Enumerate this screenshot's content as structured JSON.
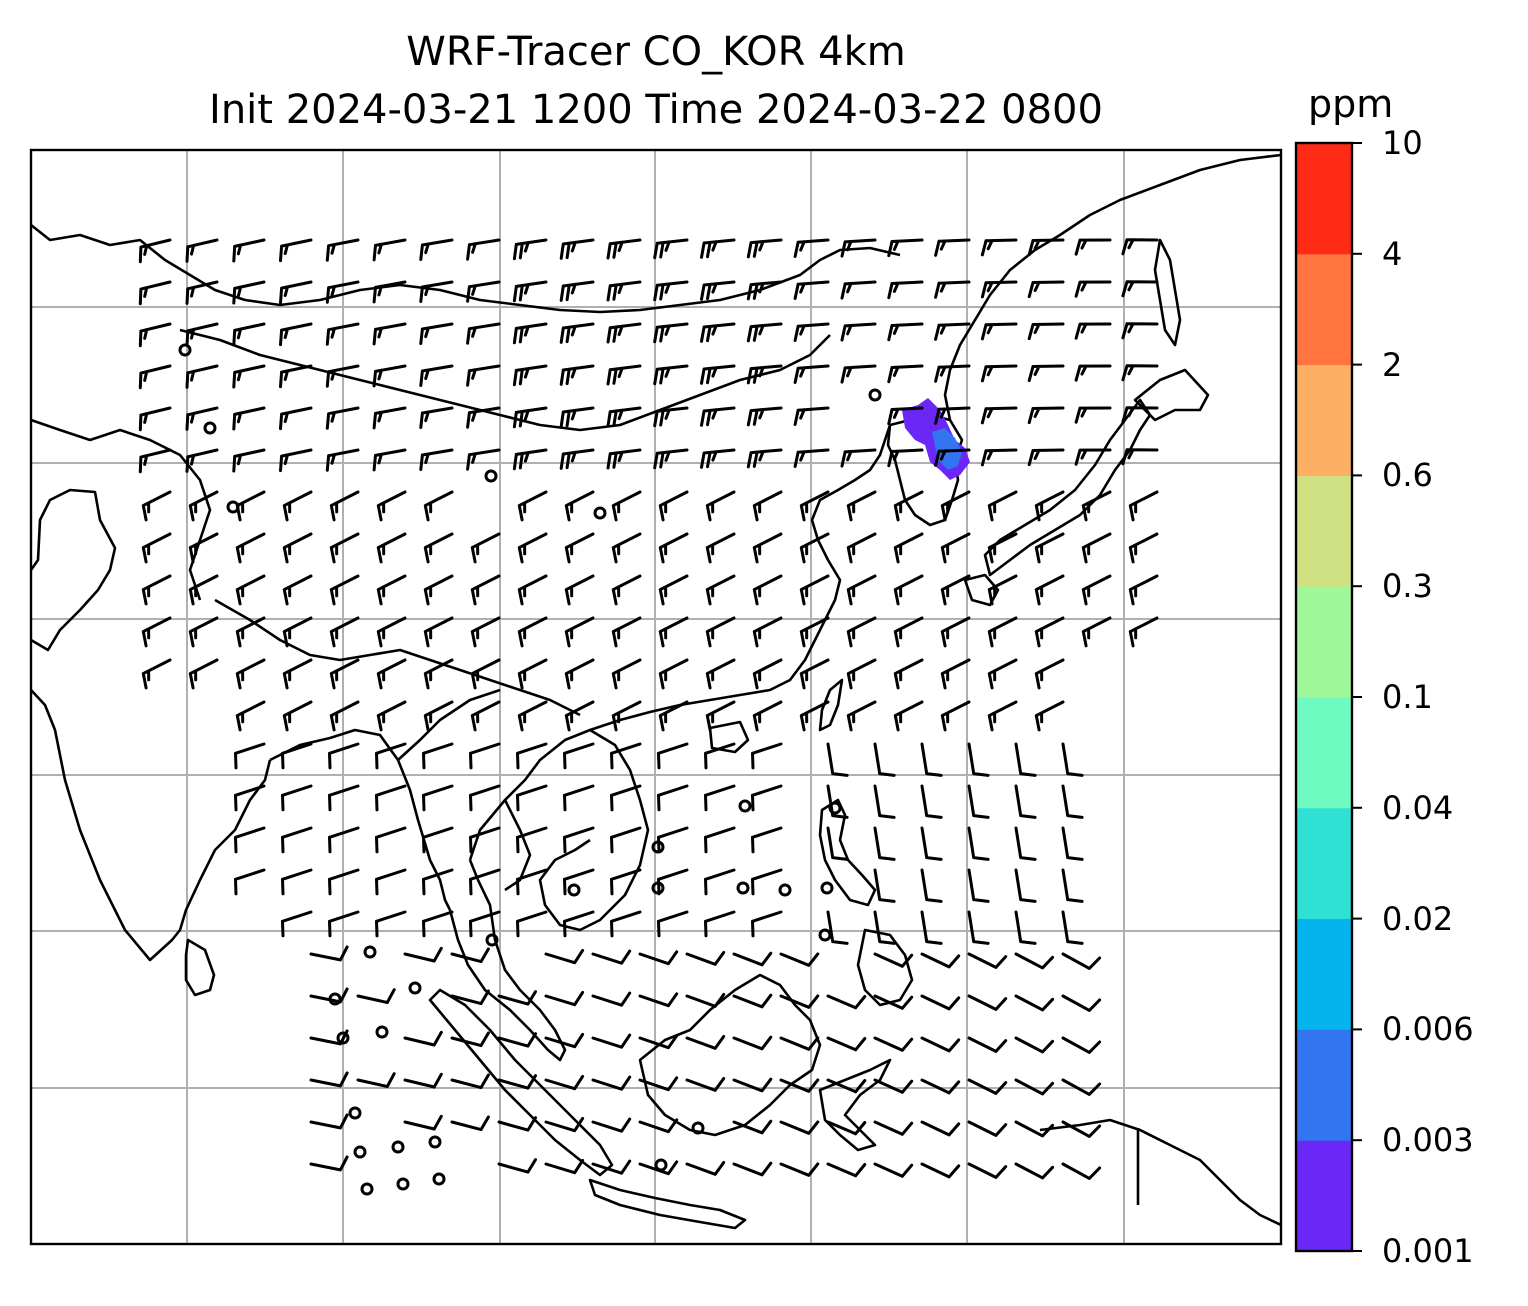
{
  "title": {
    "line1": "WRF-Tracer CO_KOR 4km",
    "line2": "Init 2024-03-21 1200 Time 2024-03-22 0800"
  },
  "colorbar": {
    "unit": "ppm",
    "levels": [
      "0.001",
      "0.003",
      "0.006",
      "0.02",
      "0.04",
      "0.1",
      "0.3",
      "0.6",
      "2",
      "4",
      "10"
    ],
    "colors": [
      "#6a27f5",
      "#3374f0",
      "#05b4ec",
      "#2fe0d4",
      "#6efac0",
      "#9ff89a",
      "#d0e184",
      "#fdaf63",
      "#ff743f",
      "#ff2b17"
    ]
  },
  "plume": {
    "colors": [
      "#6a27f5",
      "#3374f0"
    ]
  },
  "wind_field": {
    "calm_marker": "circle",
    "barb_color": "#000000"
  }
}
